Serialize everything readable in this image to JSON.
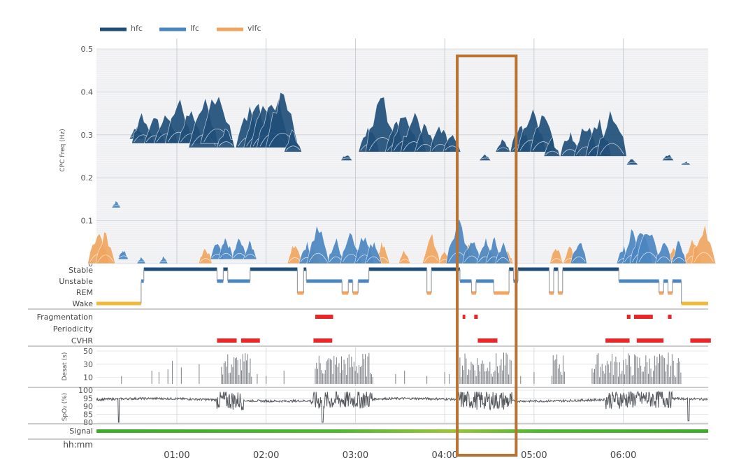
{
  "chart_data": {
    "type": "area",
    "legend": {
      "placement": "top-left",
      "items": [
        {
          "label": "hfc",
          "color": "#1f4e79"
        },
        {
          "label": "lfc",
          "color": "#4a86c0"
        },
        {
          "label": "vlfc",
          "color": "#f0a560"
        }
      ]
    },
    "x_axis": {
      "label": "hh:mm",
      "ticks": [
        "01:00",
        "02:00",
        "03:00",
        "04:00",
        "05:00",
        "06:00"
      ],
      "xlim_hours": [
        0.1,
        6.95
      ]
    },
    "spectrogram": {
      "ylabel": "CPC Freq (Hz)",
      "ylim": [
        0,
        0.5
      ],
      "yticks": [
        "0",
        "0.1",
        "0.2",
        "0.3",
        "0.4",
        "0.5"
      ],
      "hfc_peaks": [
        {
          "t": 0.55,
          "freq": 0.29,
          "height": 0.04
        },
        {
          "t": 0.62,
          "freq": 0.28,
          "height": 0.09
        },
        {
          "t": 0.75,
          "freq": 0.28,
          "height": 0.08
        },
        {
          "t": 0.88,
          "freq": 0.28,
          "height": 0.1
        },
        {
          "t": 1.02,
          "freq": 0.28,
          "height": 0.12
        },
        {
          "t": 1.15,
          "freq": 0.28,
          "height": 0.1
        },
        {
          "t": 1.3,
          "freq": 0.27,
          "height": 0.14
        },
        {
          "t": 1.45,
          "freq": 0.28,
          "height": 0.16
        },
        {
          "t": 1.55,
          "freq": 0.27,
          "height": 0.06
        },
        {
          "t": 1.8,
          "freq": 0.27,
          "height": 0.11
        },
        {
          "t": 1.9,
          "freq": 0.27,
          "height": 0.12
        },
        {
          "t": 1.98,
          "freq": 0.27,
          "height": 0.13
        },
        {
          "t": 2.08,
          "freq": 0.27,
          "height": 0.16
        },
        {
          "t": 2.18,
          "freq": 0.27,
          "height": 0.16
        },
        {
          "t": 2.3,
          "freq": 0.26,
          "height": 0.06
        },
        {
          "t": 2.9,
          "freq": 0.24,
          "height": 0.02
        },
        {
          "t": 3.15,
          "freq": 0.26,
          "height": 0.08
        },
        {
          "t": 3.3,
          "freq": 0.26,
          "height": 0.16
        },
        {
          "t": 3.45,
          "freq": 0.26,
          "height": 0.08
        },
        {
          "t": 3.55,
          "freq": 0.26,
          "height": 0.12
        },
        {
          "t": 3.65,
          "freq": 0.26,
          "height": 0.11
        },
        {
          "t": 3.78,
          "freq": 0.26,
          "height": 0.08
        },
        {
          "t": 3.95,
          "freq": 0.26,
          "height": 0.08
        },
        {
          "t": 4.08,
          "freq": 0.26,
          "height": 0.06
        },
        {
          "t": 4.45,
          "freq": 0.24,
          "height": 0.02
        },
        {
          "t": 4.65,
          "freq": 0.26,
          "height": 0.04
        },
        {
          "t": 4.85,
          "freq": 0.26,
          "height": 0.08
        },
        {
          "t": 4.97,
          "freq": 0.26,
          "height": 0.13
        },
        {
          "t": 5.1,
          "freq": 0.26,
          "height": 0.11
        },
        {
          "t": 5.2,
          "freq": 0.25,
          "height": 0.05
        },
        {
          "t": 5.4,
          "freq": 0.25,
          "height": 0.07
        },
        {
          "t": 5.58,
          "freq": 0.25,
          "height": 0.1
        },
        {
          "t": 5.72,
          "freq": 0.25,
          "height": 0.11
        },
        {
          "t": 5.87,
          "freq": 0.25,
          "height": 0.14
        },
        {
          "t": 6.1,
          "freq": 0.23,
          "height": 0.02
        },
        {
          "t": 6.5,
          "freq": 0.24,
          "height": 0.02
        },
        {
          "t": 6.7,
          "freq": 0.23,
          "height": 0.01
        }
      ],
      "lfc_peaks": [
        {
          "t": 0.32,
          "freq": 0.13,
          "height": 0.02
        },
        {
          "t": 0.4,
          "freq": 0.01,
          "height": 0.03
        },
        {
          "t": 0.6,
          "freq": 0.0,
          "height": 0.02
        },
        {
          "t": 0.85,
          "freq": 0.0,
          "height": 0.02
        },
        {
          "t": 1.45,
          "freq": 0.01,
          "height": 0.05
        },
        {
          "t": 1.55,
          "freq": 0.01,
          "height": 0.06
        },
        {
          "t": 1.7,
          "freq": 0.01,
          "height": 0.06
        },
        {
          "t": 1.82,
          "freq": 0.01,
          "height": 0.05
        },
        {
          "t": 2.45,
          "freq": 0.0,
          "height": 0.06
        },
        {
          "t": 2.58,
          "freq": 0.0,
          "height": 0.11
        },
        {
          "t": 2.78,
          "freq": 0.0,
          "height": 0.07
        },
        {
          "t": 2.95,
          "freq": 0.0,
          "height": 0.1
        },
        {
          "t": 3.1,
          "freq": 0.0,
          "height": 0.09
        },
        {
          "t": 3.2,
          "freq": 0.0,
          "height": 0.07
        },
        {
          "t": 4.15,
          "freq": 0.0,
          "height": 0.12
        },
        {
          "t": 4.3,
          "freq": 0.0,
          "height": 0.08
        },
        {
          "t": 4.45,
          "freq": 0.0,
          "height": 0.07
        },
        {
          "t": 4.55,
          "freq": 0.0,
          "height": 0.07
        },
        {
          "t": 4.65,
          "freq": 0.0,
          "height": 0.06
        },
        {
          "t": 5.5,
          "freq": 0.0,
          "height": 0.07
        },
        {
          "t": 6.0,
          "freq": 0.0,
          "height": 0.05
        },
        {
          "t": 6.1,
          "freq": 0.0,
          "height": 0.09
        },
        {
          "t": 6.2,
          "freq": 0.0,
          "height": 0.11
        },
        {
          "t": 6.28,
          "freq": 0.0,
          "height": 0.12
        },
        {
          "t": 6.45,
          "freq": 0.0,
          "height": 0.07
        },
        {
          "t": 6.62,
          "freq": 0.0,
          "height": 0.06
        }
      ],
      "vlfc_peaks": [
        {
          "t": 0.12,
          "freq": 0.0,
          "height": 0.1
        },
        {
          "t": 0.2,
          "freq": 0.0,
          "height": 0.09
        },
        {
          "t": 1.32,
          "freq": 0.0,
          "height": 0.05
        },
        {
          "t": 2.32,
          "freq": 0.0,
          "height": 0.06
        },
        {
          "t": 2.52,
          "freq": 0.0,
          "height": 0.05
        },
        {
          "t": 3.3,
          "freq": 0.0,
          "height": 0.06
        },
        {
          "t": 3.55,
          "freq": 0.0,
          "height": 0.04
        },
        {
          "t": 3.85,
          "freq": 0.0,
          "height": 0.08
        },
        {
          "t": 4.0,
          "freq": 0.0,
          "height": 0.04
        },
        {
          "t": 4.27,
          "freq": 0.0,
          "height": 0.05
        },
        {
          "t": 4.5,
          "freq": 0.0,
          "height": 0.05
        },
        {
          "t": 4.7,
          "freq": 0.0,
          "height": 0.04
        },
        {
          "t": 5.25,
          "freq": 0.0,
          "height": 0.05
        },
        {
          "t": 5.4,
          "freq": 0.0,
          "height": 0.05
        },
        {
          "t": 6.55,
          "freq": 0.0,
          "height": 0.05
        },
        {
          "t": 6.78,
          "freq": 0.0,
          "height": 0.08
        },
        {
          "t": 6.9,
          "freq": 0.0,
          "height": 0.12
        }
      ]
    },
    "hypnogram": {
      "states": [
        "Stable",
        "Unstable",
        "REM",
        "Wake"
      ],
      "colors": {
        "Stable": "#1f4e79",
        "Unstable": "#4a86c0",
        "REM": "#f0a560",
        "Wake": "#f0b93a"
      },
      "segments": [
        {
          "start": 0.1,
          "end": 0.6,
          "state": "Wake"
        },
        {
          "start": 0.6,
          "end": 0.63,
          "state": "Unstable"
        },
        {
          "start": 0.63,
          "end": 1.45,
          "state": "Stable"
        },
        {
          "start": 1.45,
          "end": 1.52,
          "state": "Unstable"
        },
        {
          "start": 1.52,
          "end": 1.57,
          "state": "Stable"
        },
        {
          "start": 1.57,
          "end": 1.82,
          "state": "Unstable"
        },
        {
          "start": 1.82,
          "end": 2.35,
          "state": "Stable"
        },
        {
          "start": 2.35,
          "end": 2.42,
          "state": "REM"
        },
        {
          "start": 2.42,
          "end": 2.45,
          "state": "Stable"
        },
        {
          "start": 2.45,
          "end": 2.85,
          "state": "Unstable"
        },
        {
          "start": 2.85,
          "end": 2.92,
          "state": "REM"
        },
        {
          "start": 2.92,
          "end": 2.97,
          "state": "Unstable"
        },
        {
          "start": 2.97,
          "end": 3.03,
          "state": "REM"
        },
        {
          "start": 3.03,
          "end": 3.15,
          "state": "Unstable"
        },
        {
          "start": 3.15,
          "end": 3.8,
          "state": "Stable"
        },
        {
          "start": 3.8,
          "end": 3.85,
          "state": "REM"
        },
        {
          "start": 3.85,
          "end": 4.17,
          "state": "Stable"
        },
        {
          "start": 4.17,
          "end": 4.3,
          "state": "Unstable"
        },
        {
          "start": 4.3,
          "end": 4.35,
          "state": "REM"
        },
        {
          "start": 4.35,
          "end": 4.55,
          "state": "Unstable"
        },
        {
          "start": 4.55,
          "end": 4.72,
          "state": "REM"
        },
        {
          "start": 4.72,
          "end": 4.77,
          "state": "Stable"
        },
        {
          "start": 4.77,
          "end": 4.82,
          "state": "Unstable"
        },
        {
          "start": 4.82,
          "end": 5.17,
          "state": "Stable"
        },
        {
          "start": 5.17,
          "end": 5.22,
          "state": "REM"
        },
        {
          "start": 5.22,
          "end": 5.27,
          "state": "Stable"
        },
        {
          "start": 5.27,
          "end": 5.32,
          "state": "REM"
        },
        {
          "start": 5.32,
          "end": 5.95,
          "state": "Stable"
        },
        {
          "start": 5.95,
          "end": 6.4,
          "state": "Unstable"
        },
        {
          "start": 6.4,
          "end": 6.45,
          "state": "REM"
        },
        {
          "start": 6.45,
          "end": 6.5,
          "state": "Unstable"
        },
        {
          "start": 6.5,
          "end": 6.55,
          "state": "REM"
        },
        {
          "start": 6.55,
          "end": 6.65,
          "state": "Unstable"
        },
        {
          "start": 6.65,
          "end": 6.95,
          "state": "Wake"
        }
      ]
    },
    "events": {
      "rows": [
        "Fragmentation",
        "Periodicity",
        "CVHR"
      ],
      "color": "#e8272a",
      "Fragmentation": [
        [
          2.55,
          2.75
        ],
        [
          4.2,
          4.23
        ],
        [
          4.33,
          4.37
        ],
        [
          6.04,
          6.08
        ],
        [
          6.12,
          6.33
        ],
        [
          6.5,
          6.54
        ]
      ],
      "Periodicity": [],
      "CVHR": [
        [
          1.45,
          1.67
        ],
        [
          1.72,
          1.93
        ],
        [
          2.53,
          2.74
        ],
        [
          4.37,
          4.59
        ],
        [
          5.8,
          6.07
        ],
        [
          6.15,
          6.45
        ],
        [
          6.75,
          6.98
        ]
      ]
    },
    "desat": {
      "ylabel": "Desat (s)",
      "ylim": [
        0,
        50
      ],
      "yticks": [
        "10",
        "30",
        "50"
      ],
      "active_periods": [
        [
          1.5,
          1.85
        ],
        [
          2.55,
          3.2
        ],
        [
          4.17,
          4.75
        ],
        [
          5.2,
          5.35
        ],
        [
          5.65,
          6.65
        ]
      ],
      "isolated": [
        [
          0.38,
          12
        ],
        [
          0.72,
          20
        ],
        [
          0.8,
          18
        ],
        [
          0.9,
          22
        ],
        [
          0.95,
          35
        ],
        [
          1.05,
          25
        ],
        [
          1.25,
          30
        ],
        [
          1.9,
          15
        ],
        [
          2.0,
          12
        ],
        [
          2.2,
          20
        ],
        [
          3.45,
          15
        ],
        [
          3.55,
          20
        ],
        [
          3.8,
          12
        ],
        [
          4.0,
          18
        ],
        [
          4.05,
          15
        ],
        [
          4.85,
          12
        ],
        [
          5.0,
          18
        ]
      ]
    },
    "spo2": {
      "ylabel": "SpO₂ (%)",
      "ylim": [
        80,
        100
      ],
      "yticks": [
        "80",
        "85",
        "90",
        "95",
        "100"
      ],
      "baseline": 94,
      "noisy_periods": [
        [
          1.45,
          1.75
        ],
        [
          2.5,
          2.85
        ],
        [
          2.85,
          3.2
        ],
        [
          4.15,
          4.75
        ],
        [
          5.8,
          6.55
        ]
      ],
      "drops": [
        [
          0.35,
          80
        ],
        [
          2.63,
          80
        ],
        [
          6.73,
          81
        ]
      ]
    },
    "signal": {
      "label": "Signal",
      "color": "#3cab2a"
    },
    "highlight": {
      "start": 4.14,
      "end": 4.8,
      "color": "#b87333"
    },
    "row_labels": {
      "stable": "Stable",
      "unstable": "Unstable",
      "rem": "REM",
      "wake": "Wake",
      "fragmentation": "Fragmentation",
      "periodicity": "Periodicity",
      "cvhr": "CVHR",
      "signal": "Signal",
      "time": "hh:mm"
    }
  }
}
